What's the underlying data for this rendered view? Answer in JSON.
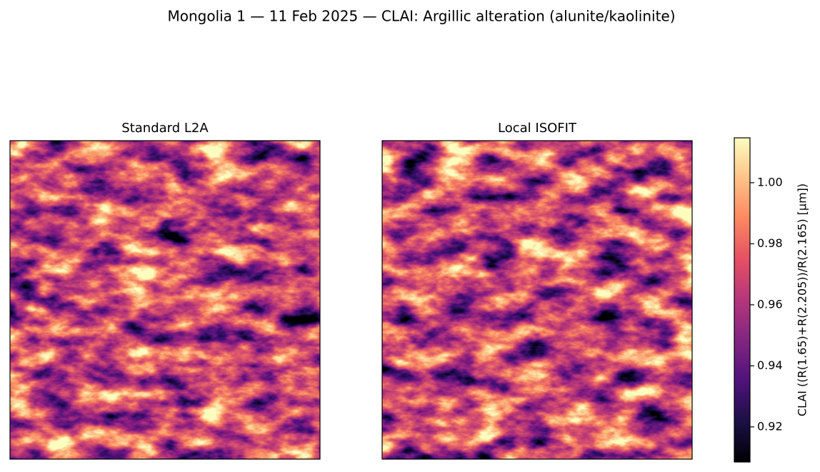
{
  "chart_data": {
    "type": "image",
    "title": "Mongolia 1 — 11 Feb 2025 — CLAI: Argillic alteration (alunite/kaolinite)",
    "panels": [
      {
        "title": "Standard L2A"
      },
      {
        "title": "Local ISOFIT"
      }
    ],
    "colormap": "magma",
    "colorbar": {
      "label": "CLAI  ((R(1.65)+R(2.205))/R(2.165)  [µm])",
      "lim": [
        0.9085,
        1.0147
      ],
      "ticks": [
        0.92,
        0.94,
        0.96,
        0.98,
        {
          "value": 1.0,
          "label": "1.00"
        }
      ]
    }
  }
}
